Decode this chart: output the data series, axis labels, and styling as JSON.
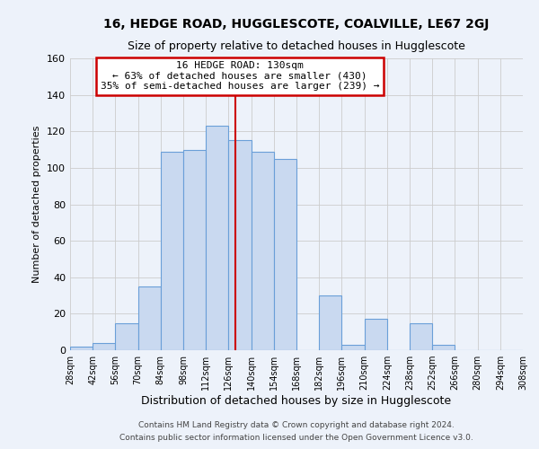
{
  "title": "16, HEDGE ROAD, HUGGLESCOTE, COALVILLE, LE67 2GJ",
  "subtitle": "Size of property relative to detached houses in Hugglescote",
  "xlabel": "Distribution of detached houses by size in Hugglescote",
  "ylabel": "Number of detached properties",
  "bin_edges": [
    28,
    42,
    56,
    70,
    84,
    98,
    112,
    126,
    140,
    154,
    168,
    182,
    196,
    210,
    224,
    238,
    252,
    266,
    280,
    294,
    308
  ],
  "bin_counts": [
    2,
    4,
    15,
    35,
    109,
    110,
    123,
    115,
    109,
    105,
    0,
    30,
    3,
    17,
    0,
    15,
    3,
    0,
    0,
    0
  ],
  "bar_facecolor": "#c9d9f0",
  "bar_edgecolor": "#6a9fd8",
  "vline_x": 130,
  "vline_color": "#cc0000",
  "annotation_line1": "16 HEDGE ROAD: 130sqm",
  "annotation_line2": "← 63% of detached houses are smaller (430)",
  "annotation_line3": "35% of semi-detached houses are larger (239) →",
  "annotation_box_edgecolor": "#cc0000",
  "annotation_box_facecolor": "#ffffff",
  "ylim": [
    0,
    160
  ],
  "yticks": [
    0,
    20,
    40,
    60,
    80,
    100,
    120,
    140,
    160
  ],
  "footer_line1": "Contains HM Land Registry data © Crown copyright and database right 2024.",
  "footer_line2": "Contains public sector information licensed under the Open Government Licence v3.0.",
  "grid_color": "#cccccc",
  "background_color": "#edf2fa",
  "title_fontsize": 10,
  "subtitle_fontsize": 9,
  "ylabel_fontsize": 8,
  "xlabel_fontsize": 9,
  "annot_fontsize": 8,
  "footer_fontsize": 6.5
}
